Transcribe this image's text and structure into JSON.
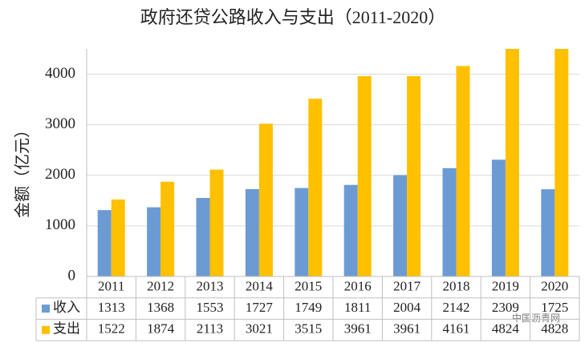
{
  "chart_data": {
    "type": "bar",
    "title": "政府还贷公路收入与支出（2011-2020）",
    "y_label": "金额（亿元）",
    "categories": [
      "2011",
      "2012",
      "2013",
      "2014",
      "2015",
      "2016",
      "2017",
      "2018",
      "2019",
      "2020"
    ],
    "series": [
      {
        "name": "收入",
        "color": "#6c9bd4",
        "values": [
          1313,
          1368,
          1553,
          1727,
          1749,
          1811,
          2004,
          2142,
          2309,
          1725
        ]
      },
      {
        "name": "支出",
        "color": "#ffc000",
        "values": [
          1522,
          1874,
          2113,
          3021,
          3515,
          3961,
          3961,
          4161,
          4824,
          4828
        ]
      }
    ],
    "ylim": [
      0,
      4500
    ],
    "yticks": [
      0,
      1000,
      2000,
      3000,
      4000
    ],
    "grid": true,
    "watermark": "中国沥青网"
  }
}
